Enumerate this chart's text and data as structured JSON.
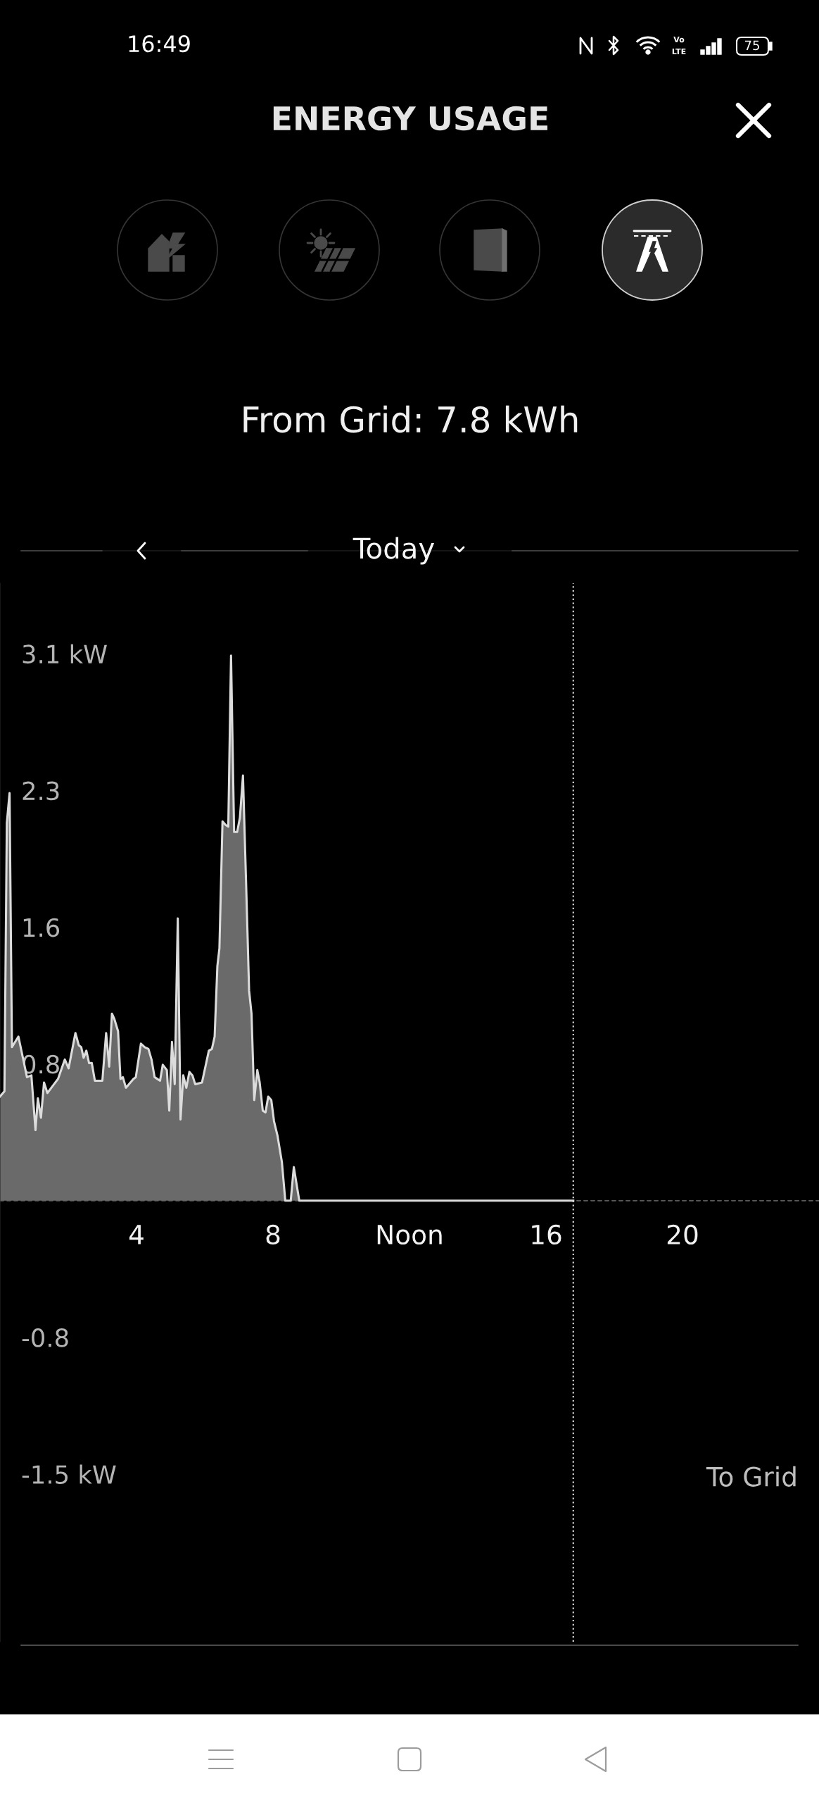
{
  "chart_data": {
    "type": "area",
    "title": "ENERGY USAGE",
    "subtitle": "From Grid: 7.8 kWh",
    "annotations": [
      "16:49",
      "Vo",
      "LTE",
      "75",
      "Today",
      "To Grid"
    ],
    "x": [
      0,
      0.13,
      0.2,
      0.28,
      0.35,
      0.54,
      0.79,
      0.92,
      1.04,
      1.11,
      1.2,
      1.29,
      1.39,
      1.7,
      1.9,
      2.01,
      2.21,
      2.31,
      2.38,
      2.45,
      2.53,
      2.61,
      2.69,
      2.78,
      3.0,
      3.11,
      3.2,
      3.28,
      3.35,
      3.46,
      3.53,
      3.6,
      3.69,
      3.91,
      3.98,
      4.13,
      4.24,
      4.35,
      4.44,
      4.53,
      4.69,
      4.77,
      4.89,
      4.96,
      5.04,
      5.12,
      5.21,
      5.29,
      5.37,
      5.46,
      5.55,
      5.64,
      5.72,
      5.92,
      6.12,
      6.21,
      6.29,
      6.37,
      6.43,
      6.52,
      6.61,
      6.69,
      6.77,
      6.86,
      6.95,
      7.03,
      7.12,
      7.21,
      7.3,
      7.37,
      7.45,
      7.54,
      7.61,
      7.7,
      7.78,
      7.86,
      7.95,
      8.03,
      8.13,
      8.26,
      8.36,
      8.52,
      8.61,
      8.77,
      16.8
    ],
    "series": [
      {
        "color": "#6a6a6b",
        "values": [
          0.59,
          0.62,
          2.14,
          2.31,
          0.87,
          0.93,
          0.7,
          0.71,
          0.4,
          0.58,
          0.47,
          0.67,
          0.61,
          0.69,
          0.8,
          0.75,
          0.95,
          0.88,
          0.87,
          0.81,
          0.85,
          0.78,
          0.78,
          0.68,
          0.68,
          0.95,
          0.76,
          1.06,
          1.03,
          0.96,
          0.69,
          0.7,
          0.64,
          0.69,
          0.7,
          0.89,
          0.87,
          0.86,
          0.8,
          0.7,
          0.68,
          0.77,
          0.74,
          0.51,
          0.9,
          0.66,
          1.6,
          0.46,
          0.71,
          0.64,
          0.73,
          0.71,
          0.66,
          0.67,
          0.85,
          0.86,
          0.93,
          1.33,
          1.43,
          2.15,
          2.13,
          2.12,
          3.09,
          2.09,
          2.09,
          2.17,
          2.41,
          1.81,
          1.19,
          1.06,
          0.57,
          0.74,
          0.67,
          0.51,
          0.5,
          0.59,
          0.57,
          0.45,
          0.37,
          0.22,
          0,
          0,
          0.19,
          0,
          0
        ]
      }
    ],
    "xlim": [
      0,
      24
    ],
    "xticks": [
      4,
      8,
      {
        "value": 12,
        "label": "Noon"
      },
      16,
      20
    ],
    "ylim": [
      -2.5,
      3.5
    ],
    "yticks": [
      {
        "value": -1.55,
        "label": "-1.5 kW"
      },
      {
        "value": -0.775,
        "label": "-0.8"
      },
      {
        "value": 0.775,
        "label": "0.8"
      },
      {
        "value": 1.55,
        "label": "1.6"
      },
      {
        "value": 2.325,
        "label": "2.3"
      },
      {
        "value": 3.1,
        "label": "3.1 kW"
      }
    ],
    "ref_lines": [
      {
        "axis": "x",
        "value": 16.8,
        "color": "#d0d0d0",
        "line_style": "dotted"
      },
      {
        "axis": "y",
        "value": 0,
        "color": "#5a5a5a",
        "line_style": "dashed"
      }
    ]
  }
}
